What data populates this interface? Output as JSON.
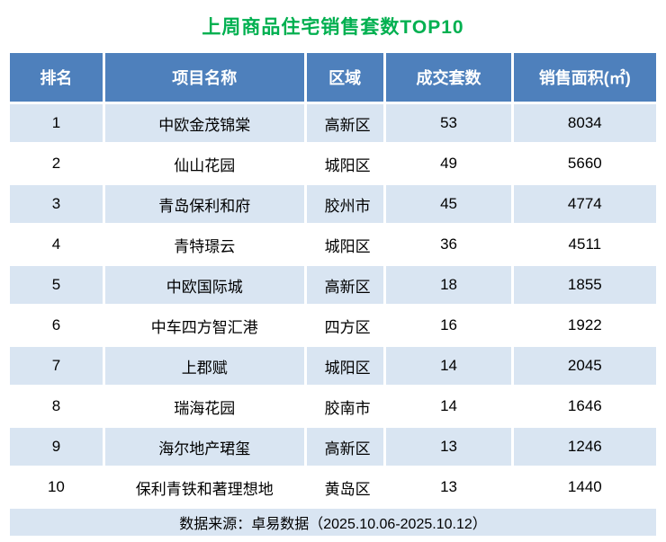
{
  "title": "上周商品住宅销售套数TOP10",
  "colors": {
    "title_green": "#00B050",
    "header_blue": "#4E80BC",
    "stripe_blue": "#D9E5F2",
    "row_white": "#FFFFFF"
  },
  "table": {
    "headers": [
      "排名",
      "项目名称",
      "区域",
      "成交套数",
      "销售面积(㎡)"
    ],
    "footer": "数据来源：卓易数据（2025.10.06-2025.10.12）"
  },
  "chart_data": {
    "type": "table",
    "title": "上周商品住宅销售套数TOP10",
    "columns": [
      "排名",
      "项目名称",
      "区域",
      "成交套数",
      "销售面积(㎡)"
    ],
    "rows": [
      [
        "1",
        "中欧金茂锦棠",
        "高新区",
        "53",
        "8034"
      ],
      [
        "2",
        "仙山花园",
        "城阳区",
        "49",
        "5660"
      ],
      [
        "3",
        "青岛保利和府",
        "胶州市",
        "45",
        "4774"
      ],
      [
        "4",
        "青特璟云",
        "城阳区",
        "36",
        "4511"
      ],
      [
        "5",
        "中欧国际城",
        "高新区",
        "18",
        "1855"
      ],
      [
        "6",
        "中车四方智汇港",
        "四方区",
        "16",
        "1922"
      ],
      [
        "7",
        "上郡赋",
        "城阳区",
        "14",
        "2045"
      ],
      [
        "8",
        "瑞海花园",
        "胶南市",
        "14",
        "1646"
      ],
      [
        "9",
        "海尔地产珺玺",
        "高新区",
        "13",
        "1246"
      ],
      [
        "10",
        "保利青铁和著理想地",
        "黄岛区",
        "13",
        "1440"
      ]
    ],
    "source_note": "数据来源：卓易数据（2025.10.06-2025.10.12）"
  }
}
